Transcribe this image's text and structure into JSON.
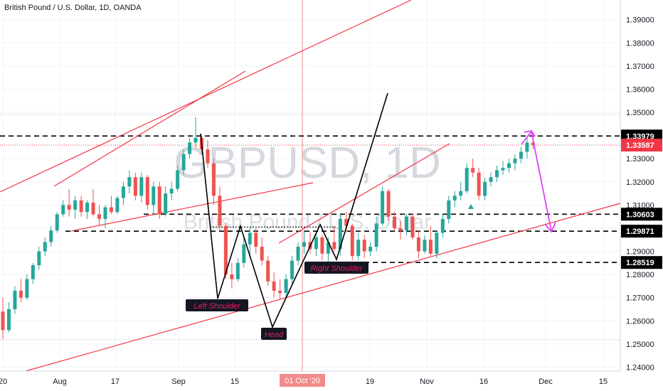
{
  "header": {
    "title": "British Pound / U.S. Dollar, 1D, OANDA"
  },
  "watermark": {
    "symbol": "GBPUSD, 1D",
    "name": "British Pound / U.S. Dollar"
  },
  "colors": {
    "up": "#26a69a",
    "down": "#ef5350",
    "trend": "#f23645",
    "pattern": "#000000",
    "projection": "#e040fb",
    "last_price": "#f23645"
  },
  "chart_data": {
    "type": "candlestick",
    "title": "British Pound / U.S. Dollar, 1D, OANDA",
    "ylim": [
      1.2383,
      1.3985
    ],
    "y_ticks": [
      "1.39000",
      "1.38000",
      "1.37000",
      "1.36000",
      "1.35000",
      "1.34000",
      "1.33000",
      "1.32000",
      "1.31000",
      "1.30000",
      "1.29000",
      "1.28000",
      "1.27000",
      "1.26000",
      "1.25000",
      "1.24000"
    ],
    "x_ticks": [
      "20",
      "Aug",
      "17",
      "Sep",
      "15",
      "Oct",
      "19",
      "Nov",
      "16",
      "Dec",
      "15"
    ],
    "crosshair_label": "01 Oct '20",
    "last_price": "1.33587",
    "levels": [
      {
        "label": "1.33979",
        "value": 1.33979
      },
      {
        "label": "1.30603",
        "value": 1.30603
      },
      {
        "label": "1.29871",
        "value": 1.29871
      },
      {
        "label": "1.28519",
        "value": 1.28519
      }
    ],
    "annotations": [
      "Left Shoulder",
      "Head",
      "Right Shoulder"
    ],
    "candles": [
      [
        1.264,
        1.27,
        1.252,
        1.256
      ],
      [
        1.256,
        1.268,
        1.255,
        1.265
      ],
      [
        1.265,
        1.275,
        1.263,
        1.273
      ],
      [
        1.273,
        1.278,
        1.268,
        1.27
      ],
      [
        1.27,
        1.28,
        1.269,
        1.278
      ],
      [
        1.278,
        1.285,
        1.276,
        1.284
      ],
      [
        1.284,
        1.292,
        1.282,
        1.29
      ],
      [
        1.29,
        1.296,
        1.288,
        1.294
      ],
      [
        1.294,
        1.301,
        1.292,
        1.299
      ],
      [
        1.299,
        1.307,
        1.298,
        1.306
      ],
      [
        1.306,
        1.312,
        1.305,
        1.31
      ],
      [
        1.31,
        1.317,
        1.305,
        1.308
      ],
      [
        1.308,
        1.314,
        1.304,
        1.312
      ],
      [
        1.312,
        1.314,
        1.305,
        1.307
      ],
      [
        1.307,
        1.312,
        1.304,
        1.311
      ],
      [
        1.311,
        1.317,
        1.305,
        1.306
      ],
      [
        1.306,
        1.31,
        1.301,
        1.304
      ],
      [
        1.304,
        1.31,
        1.3,
        1.309
      ],
      [
        1.309,
        1.314,
        1.306,
        1.307
      ],
      [
        1.307,
        1.314,
        1.306,
        1.313
      ],
      [
        1.313,
        1.32,
        1.31,
        1.318
      ],
      [
        1.318,
        1.325,
        1.315,
        1.322
      ],
      [
        1.322,
        1.324,
        1.312,
        1.314
      ],
      [
        1.314,
        1.324,
        1.311,
        1.322
      ],
      [
        1.322,
        1.323,
        1.308,
        1.31
      ],
      [
        1.31,
        1.32,
        1.306,
        1.318
      ],
      [
        1.318,
        1.32,
        1.304,
        1.306
      ],
      [
        1.306,
        1.318,
        1.305,
        1.315
      ],
      [
        1.315,
        1.32,
        1.312,
        1.317
      ],
      [
        1.317,
        1.327,
        1.316,
        1.325
      ],
      [
        1.325,
        1.334,
        1.323,
        1.332
      ],
      [
        1.332,
        1.339,
        1.33,
        1.337
      ],
      [
        1.337,
        1.348,
        1.335,
        1.339
      ],
      [
        1.339,
        1.34,
        1.332,
        1.334
      ],
      [
        1.334,
        1.338,
        1.326,
        1.328
      ],
      [
        1.328,
        1.33,
        1.31,
        1.314
      ],
      [
        1.314,
        1.318,
        1.299,
        1.301
      ],
      [
        1.301,
        1.302,
        1.278,
        1.28
      ],
      [
        1.28,
        1.285,
        1.274,
        1.278
      ],
      [
        1.278,
        1.287,
        1.277,
        1.285
      ],
      [
        1.285,
        1.296,
        1.283,
        1.293
      ],
      [
        1.293,
        1.3,
        1.287,
        1.298
      ],
      [
        1.298,
        1.3,
        1.289,
        1.292
      ],
      [
        1.292,
        1.296,
        1.284,
        1.286
      ],
      [
        1.286,
        1.288,
        1.275,
        1.277
      ],
      [
        1.277,
        1.281,
        1.27,
        1.273
      ],
      [
        1.273,
        1.278,
        1.269,
        1.272
      ],
      [
        1.272,
        1.28,
        1.27,
        1.278
      ],
      [
        1.278,
        1.288,
        1.276,
        1.286
      ],
      [
        1.286,
        1.294,
        1.284,
        1.292
      ],
      [
        1.292,
        1.299,
        1.289,
        1.294
      ],
      [
        1.294,
        1.298,
        1.289,
        1.291
      ],
      [
        1.291,
        1.298,
        1.288,
        1.296
      ],
      [
        1.296,
        1.297,
        1.286,
        1.289
      ],
      [
        1.289,
        1.296,
        1.285,
        1.294
      ],
      [
        1.294,
        1.301,
        1.29,
        1.291
      ],
      [
        1.291,
        1.306,
        1.288,
        1.304
      ],
      [
        1.304,
        1.307,
        1.298,
        1.301
      ],
      [
        1.301,
        1.302,
        1.286,
        1.288
      ],
      [
        1.288,
        1.298,
        1.286,
        1.295
      ],
      [
        1.295,
        1.297,
        1.287,
        1.29
      ],
      [
        1.29,
        1.294,
        1.288,
        1.292
      ],
      [
        1.292,
        1.305,
        1.29,
        1.302
      ],
      [
        1.302,
        1.318,
        1.301,
        1.316
      ],
      [
        1.316,
        1.317,
        1.303,
        1.305
      ],
      [
        1.305,
        1.307,
        1.299,
        1.3
      ],
      [
        1.3,
        1.303,
        1.295,
        1.299
      ],
      [
        1.299,
        1.306,
        1.297,
        1.305
      ],
      [
        1.305,
        1.306,
        1.295,
        1.296
      ],
      [
        1.296,
        1.299,
        1.287,
        1.29
      ],
      [
        1.29,
        1.297,
        1.289,
        1.295
      ],
      [
        1.295,
        1.301,
        1.288,
        1.289
      ],
      [
        1.289,
        1.299,
        1.287,
        1.298
      ],
      [
        1.298,
        1.306,
        1.296,
        1.304
      ],
      [
        1.304,
        1.314,
        1.302,
        1.312
      ],
      [
        1.312,
        1.316,
        1.309,
        1.314
      ],
      [
        1.314,
        1.32,
        1.312,
        1.316
      ],
      [
        1.316,
        1.328,
        1.315,
        1.326
      ],
      [
        1.326,
        1.33,
        1.322,
        1.324
      ],
      [
        1.324,
        1.326,
        1.312,
        1.314
      ],
      [
        1.314,
        1.322,
        1.312,
        1.32
      ],
      [
        1.32,
        1.324,
        1.318,
        1.322
      ],
      [
        1.322,
        1.327,
        1.32,
        1.325
      ],
      [
        1.325,
        1.329,
        1.323,
        1.326
      ],
      [
        1.326,
        1.33,
        1.324,
        1.328
      ],
      [
        1.328,
        1.332,
        1.325,
        1.33
      ],
      [
        1.33,
        1.335,
        1.328,
        1.333
      ],
      [
        1.333,
        1.339,
        1.33,
        1.337
      ],
      [
        1.337,
        1.34,
        1.334,
        1.3359
      ]
    ]
  }
}
